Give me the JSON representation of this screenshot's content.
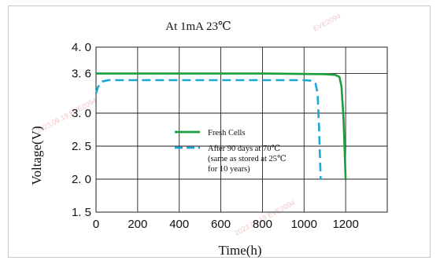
{
  "chart_data": {
    "type": "line",
    "title": "At 1mA 23℃",
    "xlabel": "Time(h)",
    "ylabel": "Voltage(V)",
    "xlim": [
      0,
      1400
    ],
    "ylim": [
      1.5,
      4.0
    ],
    "x_ticks": [
      0,
      200,
      400,
      600,
      800,
      1000,
      1200
    ],
    "x_tick_labels": [
      "0",
      "200",
      "400",
      "600",
      "800",
      "1000",
      "1200"
    ],
    "y_ticks": [
      4.0,
      3.6,
      3.0,
      2.5,
      2.0,
      1.5
    ],
    "y_tick_labels": [
      "4. 0",
      "3. 6",
      "3. 0",
      "2. 5",
      "2. 0",
      "1. 5"
    ],
    "grid": true,
    "legend_position": "center",
    "series": [
      {
        "name": "Fresh Cells",
        "color": "#1a9e3b",
        "line_style": "solid",
        "x": [
          0,
          100,
          400,
          800,
          1100,
          1150,
          1170,
          1180,
          1190,
          1200
        ],
        "y": [
          3.6,
          3.6,
          3.6,
          3.6,
          3.59,
          3.58,
          3.55,
          3.4,
          2.9,
          2.0
        ]
      },
      {
        "name": "After 90 days at 70℃ (same as stored at 25℃ for 10 years)",
        "color": "#1aa8d9",
        "line_style": "dashed",
        "x": [
          0,
          10,
          30,
          60,
          300,
          700,
          1000,
          1040,
          1055,
          1065,
          1072,
          1080
        ],
        "y": [
          3.3,
          3.4,
          3.48,
          3.5,
          3.5,
          3.5,
          3.5,
          3.49,
          3.45,
          3.3,
          2.8,
          2.0
        ]
      }
    ],
    "legend": {
      "entries": [
        {
          "lines": [
            "Fresh Cells"
          ],
          "color": "#1a9e3b",
          "dashed": false
        },
        {
          "lines": [
            "After 90 days at 70℃",
            "(same as stored at 25℃",
            "for 10 years)"
          ],
          "color": "#1aa8d9",
          "dashed": true
        }
      ]
    },
    "watermarks": [
      "2023.09.19  EVE2094",
      "2023.09.19  EVE2094",
      "EVE2094"
    ]
  }
}
